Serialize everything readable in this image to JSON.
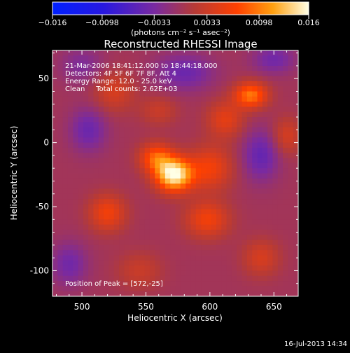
{
  "chart_data": {
    "type": "heatmap",
    "title": "Reconstructed RHESSI Image",
    "xlabel": "Heliocentric X (arcsec)",
    "ylabel": "Heliocentric Y (arcsec)",
    "xlim": [
      477,
      669
    ],
    "ylim": [
      -120,
      72
    ],
    "x_ticks": [
      500,
      550,
      600,
      650
    ],
    "y_ticks": [
      50,
      0,
      -50,
      -100
    ],
    "colorbar": {
      "range": [
        -0.016,
        0.016
      ],
      "tick_values": [
        -0.016,
        -0.0098,
        -0.0033,
        0.0033,
        0.0098,
        0.016
      ],
      "tick_labels": [
        "−0.016",
        "−0.0098",
        "−0.0033",
        "0.0033",
        "0.0098",
        "0.016"
      ],
      "unit_label": "(photons cm⁻² s⁻¹ asec⁻²)"
    },
    "annotations": [
      "21-Mar-2006 18:41:12.000 to 18:44:18.000",
      "Detectors: 4F 5F 6F 7F 8F, Att 4",
      "Energy Range: 12.0 - 25.0 keV",
      "Clean     Total counts: 2.62E+03"
    ],
    "peak_label": "Position of Peak = [572,-25]",
    "peak": [
      572,
      -25
    ],
    "sources": [
      {
        "x": 572,
        "y": -25,
        "amp": 0.016,
        "sx": 10,
        "sy": 9
      },
      {
        "x": 558,
        "y": -12,
        "amp": 0.008,
        "sx": 9,
        "sy": 8
      },
      {
        "x": 632,
        "y": 37,
        "amp": 0.0095,
        "sx": 9,
        "sy": 7
      },
      {
        "x": 612,
        "y": 18,
        "amp": 0.005,
        "sx": 10,
        "sy": 10
      },
      {
        "x": 600,
        "y": -20,
        "amp": 0.006,
        "sx": 12,
        "sy": 12
      },
      {
        "x": 598,
        "y": -60,
        "amp": 0.006,
        "sx": 12,
        "sy": 10
      },
      {
        "x": 520,
        "y": -55,
        "amp": 0.006,
        "sx": 10,
        "sy": 10
      },
      {
        "x": 525,
        "y": 40,
        "amp": 0.004,
        "sx": 11,
        "sy": 11
      },
      {
        "x": 560,
        "y": 25,
        "amp": 0.003,
        "sx": 10,
        "sy": 8
      },
      {
        "x": 640,
        "y": -90,
        "amp": 0.004,
        "sx": 10,
        "sy": 10
      },
      {
        "x": 660,
        "y": 5,
        "amp": 0.004,
        "sx": 8,
        "sy": 10
      },
      {
        "x": 545,
        "y": -100,
        "amp": 0.003,
        "sx": 12,
        "sy": 10
      },
      {
        "x": 505,
        "y": 10,
        "amp": -0.0045,
        "sx": 10,
        "sy": 12
      },
      {
        "x": 640,
        "y": -10,
        "amp": -0.005,
        "sx": 10,
        "sy": 14
      },
      {
        "x": 580,
        "y": 55,
        "amp": -0.0045,
        "sx": 16,
        "sy": 10
      },
      {
        "x": 490,
        "y": -95,
        "amp": -0.004,
        "sx": 10,
        "sy": 12
      },
      {
        "x": 650,
        "y": 65,
        "amp": -0.004,
        "sx": 12,
        "sy": 8
      },
      {
        "x": 500,
        "y": 60,
        "amp": -0.003,
        "sx": 12,
        "sy": 10
      }
    ]
  },
  "footer": {
    "timestamp": "16-Jul-2013 14:34"
  }
}
